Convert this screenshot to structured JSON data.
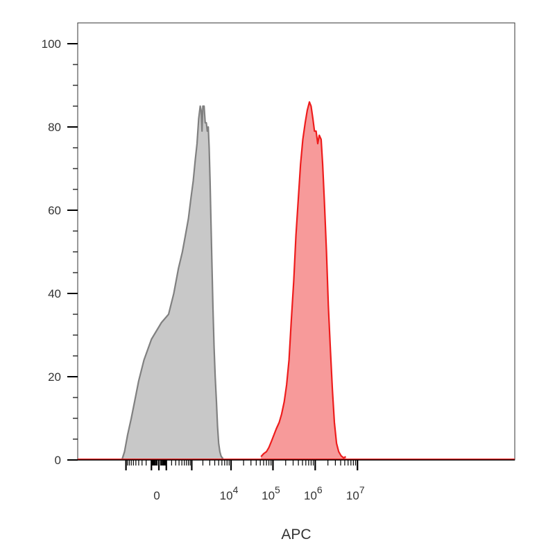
{
  "chart_data": {
    "type": "area",
    "title": "",
    "xlabel": "APC",
    "ylabel": "",
    "x_scale": "biexponential",
    "ylim": [
      0,
      105
    ],
    "grid": false,
    "legend": "none",
    "y_ticks": [
      {
        "value": 0,
        "label": "0"
      },
      {
        "value": 20,
        "label": "20"
      },
      {
        "value": 40,
        "label": "40"
      },
      {
        "value": 60,
        "label": "60"
      },
      {
        "value": 80,
        "label": "80"
      },
      {
        "value": 100,
        "label": "100"
      }
    ],
    "x_ticks": [
      {
        "value": 0,
        "base": "0",
        "exp": ""
      },
      {
        "value": 10000,
        "base": "10",
        "exp": "4"
      },
      {
        "value": 100000,
        "base": "10",
        "exp": "5"
      },
      {
        "value": 1000000,
        "base": "10",
        "exp": "6"
      },
      {
        "value": 10000000,
        "base": "10",
        "exp": "7"
      }
    ],
    "series": [
      {
        "color": "#808080",
        "fill": "#c8c8c8",
        "points": [
          [
            -1300,
            0
          ],
          [
            -1100,
            2
          ],
          [
            -900,
            6
          ],
          [
            -700,
            10
          ],
          [
            -550,
            14
          ],
          [
            -400,
            19
          ],
          [
            -250,
            24
          ],
          [
            -100,
            29
          ],
          [
            30,
            33
          ],
          [
            140,
            35
          ],
          [
            250,
            40
          ],
          [
            380,
            46
          ],
          [
            520,
            50
          ],
          [
            650,
            54
          ],
          [
            800,
            58
          ],
          [
            950,
            63
          ],
          [
            1100,
            67
          ],
          [
            1250,
            72
          ],
          [
            1400,
            76
          ],
          [
            1550,
            82
          ],
          [
            1700,
            85
          ],
          [
            1800,
            84
          ],
          [
            1900,
            79
          ],
          [
            2000,
            85
          ],
          [
            2150,
            85
          ],
          [
            2300,
            81
          ],
          [
            2450,
            81
          ],
          [
            2600,
            79
          ],
          [
            2750,
            80
          ],
          [
            2900,
            75
          ],
          [
            3050,
            67
          ],
          [
            3200,
            58
          ],
          [
            3400,
            47
          ],
          [
            3600,
            37
          ],
          [
            3850,
            27
          ],
          [
            4100,
            20
          ],
          [
            4400,
            14
          ],
          [
            4700,
            8
          ],
          [
            5000,
            4
          ],
          [
            5350,
            2
          ],
          [
            5700,
            1
          ],
          [
            6100,
            0.5
          ],
          [
            6500,
            0.4
          ]
        ]
      },
      {
        "color": "#ee1c1c",
        "fill": "#f79a9a",
        "points": [
          [
            52000,
            0.8
          ],
          [
            60000,
            1.5
          ],
          [
            70000,
            2
          ],
          [
            80000,
            3
          ],
          [
            92000,
            4.5
          ],
          [
            105000,
            6
          ],
          [
            120000,
            7.5
          ],
          [
            140000,
            9
          ],
          [
            160000,
            11
          ],
          [
            185000,
            14
          ],
          [
            210000,
            18
          ],
          [
            240000,
            24
          ],
          [
            270000,
            33
          ],
          [
            310000,
            43
          ],
          [
            350000,
            54
          ],
          [
            400000,
            63
          ],
          [
            450000,
            71
          ],
          [
            510000,
            77
          ],
          [
            580000,
            81
          ],
          [
            650000,
            84
          ],
          [
            730000,
            86
          ],
          [
            800000,
            85
          ],
          [
            880000,
            82
          ],
          [
            960000,
            79
          ],
          [
            1050000,
            79
          ],
          [
            1150000,
            76
          ],
          [
            1250000,
            78
          ],
          [
            1380000,
            77
          ],
          [
            1500000,
            71
          ],
          [
            1650000,
            62
          ],
          [
            1850000,
            50
          ],
          [
            2050000,
            37
          ],
          [
            2300000,
            26
          ],
          [
            2550000,
            17
          ],
          [
            2850000,
            9
          ],
          [
            3200000,
            4
          ],
          [
            3600000,
            2
          ],
          [
            4100000,
            1
          ],
          [
            4700000,
            0.5
          ],
          [
            5300000,
            0.8
          ]
        ]
      }
    ]
  }
}
